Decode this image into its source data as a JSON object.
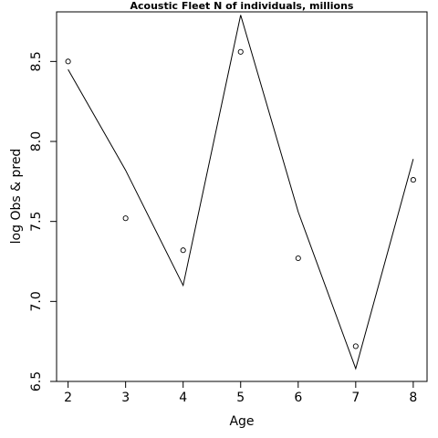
{
  "chart_data": {
    "type": "line",
    "title": "Acoustic Fleet   N of individuals, millions",
    "xlabel": "Age",
    "ylabel": "log Obs & pred",
    "x": [
      2,
      3,
      4,
      5,
      6,
      7,
      8
    ],
    "x_ticks": [
      "2",
      "3",
      "4",
      "5",
      "6",
      "7",
      "8"
    ],
    "y_ticks": [
      "6.5",
      "7.0",
      "7.5",
      "8.0",
      "8.5"
    ],
    "xlim": [
      1.8,
      8.24
    ],
    "ylim": [
      6.5,
      8.81
    ],
    "grid": false,
    "series": [
      {
        "style": "points",
        "values": [
          8.5,
          7.52,
          7.32,
          8.56,
          7.27,
          6.72,
          7.76
        ]
      },
      {
        "style": "line",
        "values": [
          8.45,
          7.82,
          7.1,
          8.79,
          7.56,
          6.58,
          7.89
        ]
      }
    ]
  }
}
